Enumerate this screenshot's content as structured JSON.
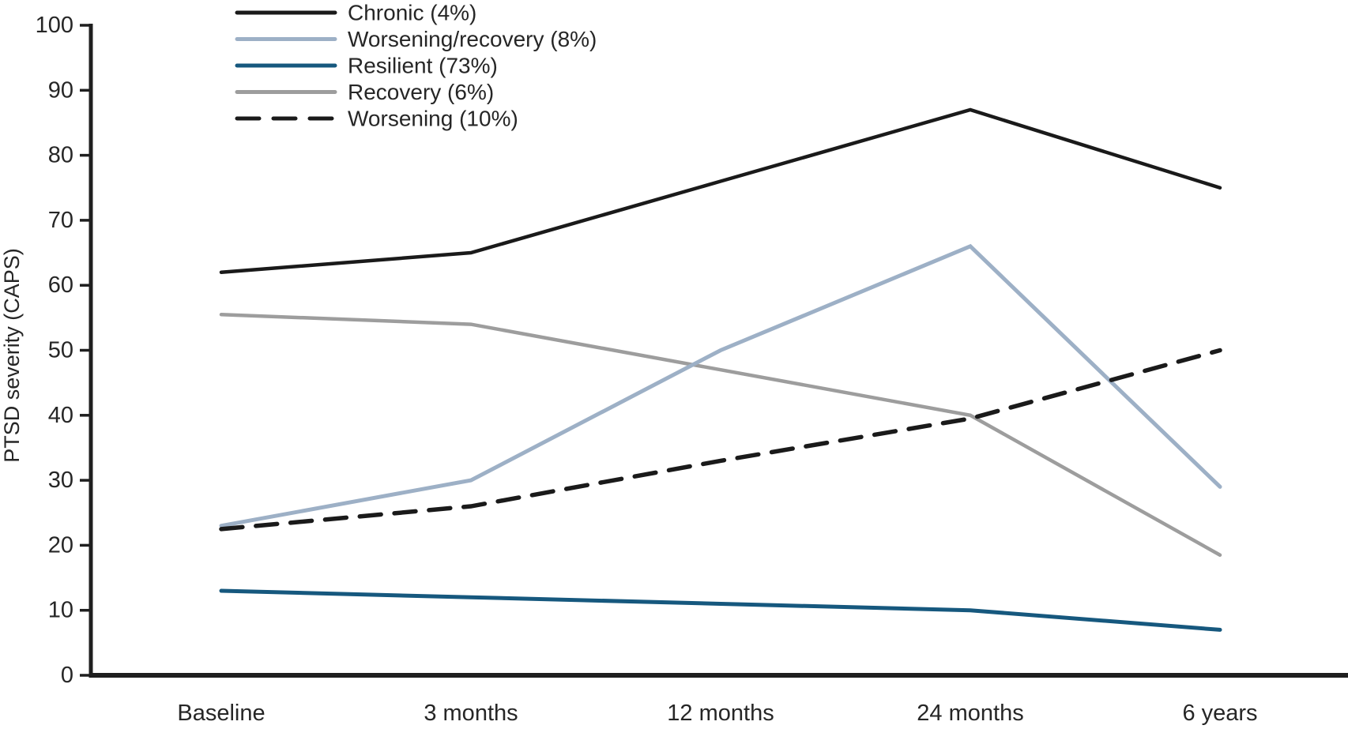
{
  "figure": {
    "y_axis_title": "PTSD severity (CAPS)"
  },
  "chart_data": {
    "type": "line",
    "title": "",
    "xlabel": "",
    "ylabel": "PTSD severity (CAPS)",
    "ylim": [
      0,
      100
    ],
    "yticks": [
      0,
      10,
      20,
      30,
      40,
      50,
      60,
      70,
      80,
      90,
      100
    ],
    "grid": false,
    "legend_position": "top-left",
    "categories": [
      "Baseline",
      "3 months",
      "12 months",
      "24 months",
      "6 years"
    ],
    "series": [
      {
        "name": "Chronic (4%)",
        "values": [
          62,
          65,
          76,
          87,
          75
        ],
        "color": "#1a1a1a",
        "dash": null
      },
      {
        "name": "Worsening/recovery (8%)",
        "values": [
          23,
          30,
          50,
          66,
          29
        ],
        "color": "#9db0c6",
        "dash": null
      },
      {
        "name": "Resilient (73%)",
        "values": [
          13,
          12,
          11,
          10,
          7
        ],
        "color": "#16587e",
        "dash": null
      },
      {
        "name": "Recovery (6%)",
        "values": [
          55.5,
          54,
          47,
          40,
          18.5
        ],
        "color": "#9d9d9d",
        "dash": null
      },
      {
        "name": "Worsening (10%)",
        "values": [
          22.5,
          26,
          33,
          39.5,
          50
        ],
        "color": "#1a1a1a",
        "dash": "27 17"
      }
    ]
  }
}
